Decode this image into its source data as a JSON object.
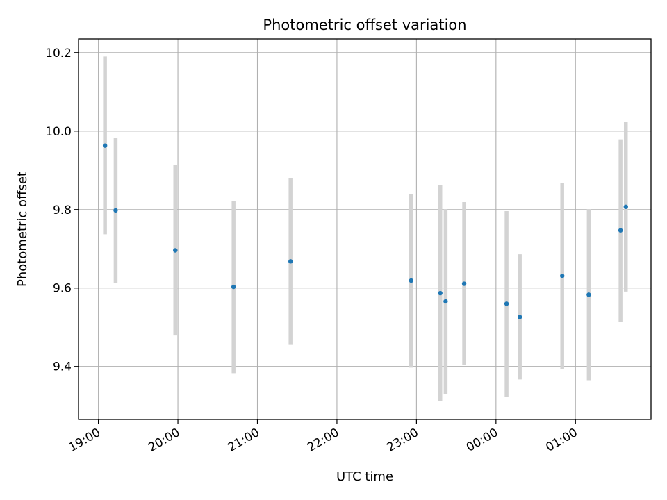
{
  "chart_data": {
    "type": "scatter",
    "title": "Photometric offset variation",
    "xlabel": "UTC time",
    "ylabel": "Photometric offset",
    "x_tick_labels": [
      "19:00",
      "20:00",
      "21:00",
      "22:00",
      "23:00",
      "00:00",
      "01:00"
    ],
    "x_tick_positions_hours": [
      19,
      20,
      21,
      22,
      23,
      24,
      25
    ],
    "y_ticks": [
      9.4,
      9.6,
      9.8,
      10.0,
      10.2
    ],
    "xlim_hours": [
      18.75,
      25.95
    ],
    "ylim": [
      9.265,
      10.235
    ],
    "grid": true,
    "point_color": "#1f77b4",
    "errorbar_color": "#d3d3d3",
    "points": [
      {
        "time": "19:05",
        "y": 9.963,
        "ylow": 9.737,
        "yhigh": 10.19
      },
      {
        "time": "19:13",
        "y": 9.798,
        "ylow": 9.613,
        "yhigh": 9.983
      },
      {
        "time": "19:58",
        "y": 9.696,
        "ylow": 9.479,
        "yhigh": 9.913
      },
      {
        "time": "20:42",
        "y": 9.603,
        "ylow": 9.383,
        "yhigh": 9.822
      },
      {
        "time": "21:25",
        "y": 9.668,
        "ylow": 9.455,
        "yhigh": 9.881
      },
      {
        "time": "22:56",
        "y": 9.619,
        "ylow": 9.397,
        "yhigh": 9.84
      },
      {
        "time": "23:18",
        "y": 9.587,
        "ylow": 9.311,
        "yhigh": 9.862
      },
      {
        "time": "23:22",
        "y": 9.566,
        "ylow": 9.329,
        "yhigh": 9.801
      },
      {
        "time": "23:36",
        "y": 9.611,
        "ylow": 9.403,
        "yhigh": 9.819
      },
      {
        "time": "00:08",
        "y": 9.56,
        "ylow": 9.323,
        "yhigh": 9.796
      },
      {
        "time": "00:18",
        "y": 9.526,
        "ylow": 9.367,
        "yhigh": 9.686
      },
      {
        "time": "00:50",
        "y": 9.631,
        "ylow": 9.393,
        "yhigh": 9.867
      },
      {
        "time": "01:10",
        "y": 9.583,
        "ylow": 9.365,
        "yhigh": 9.801
      },
      {
        "time": "01:34",
        "y": 9.747,
        "ylow": 9.514,
        "yhigh": 9.979
      },
      {
        "time": "01:38",
        "y": 9.807,
        "ylow": 9.591,
        "yhigh": 10.024
      }
    ]
  }
}
